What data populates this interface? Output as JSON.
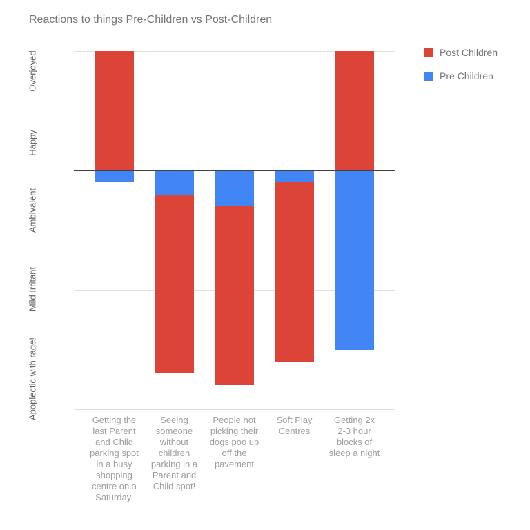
{
  "title": "Reactions to things Pre-Children vs Post-Children",
  "chart_data": {
    "type": "bar",
    "subtype": "stacked-column-diverging",
    "title": "Reactions to things Pre-Children vs Post-Children",
    "stacked": true,
    "categories": [
      "Getting the\nlast Parent\nand Child\nparking spot\nin a busy\nshopping\ncentre on a\nSaturday.",
      "Seeing\nsomeone\nwithout\nchildren\nparking in a\nParent and\nChild spot!",
      "People not\npicking their\ndogs poo up\noff the\npavement",
      "Soft Play\nCentres",
      "Getting 2x\n2-3 hour\nblocks of\nsleep a night"
    ],
    "series": [
      {
        "name": "Post Children",
        "color": "#db4437",
        "values": [
          1,
          -1.5,
          -1.5,
          -1.5,
          1
        ]
      },
      {
        "name": "Pre Children",
        "color": "#4285f4",
        "values": [
          -0.1,
          -0.2,
          -0.3,
          -0.1,
          -1.5
        ]
      }
    ],
    "y_ticks": [
      "Overjoyed",
      "Happy",
      "Ambivalent",
      "Mild Irritant",
      "Apoplectic with rage!"
    ],
    "xlabel": "",
    "ylabel": "",
    "ylim": [
      1,
      -2
    ],
    "gridline_values": [
      1,
      0,
      -1,
      -2
    ],
    "zero_line_value": 0,
    "grid_on": true,
    "legend_position": "right-top",
    "colors": {
      "post_children": "#db4437",
      "pre_children": "#4285f4",
      "gridline": "#e0e0e0",
      "zero_line": "#424242",
      "title_text": "#757575",
      "y_tick_text": "#616161",
      "x_tick_text": "#9e9e9e",
      "legend_text": "#757575"
    }
  }
}
